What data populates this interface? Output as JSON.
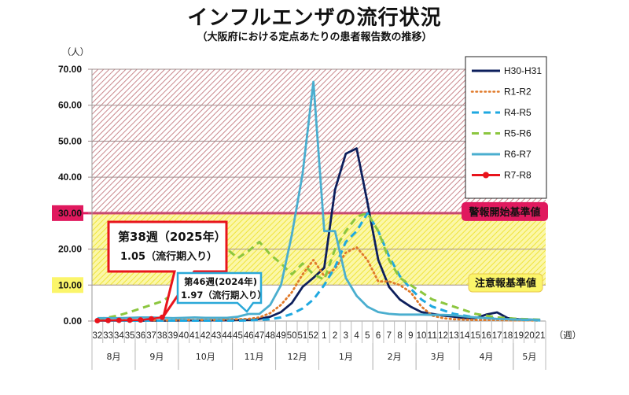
{
  "chart_data": {
    "type": "line",
    "title": "インフルエンザの流行状況",
    "subtitle": "（大阪府における定点あたりの患者報告数の推移）",
    "ylabel": "（人）",
    "xlabel": "（週）",
    "ylim": [
      0,
      70
    ],
    "yticks": [
      "0.00",
      "10.00",
      "20.00",
      "30.00",
      "40.00",
      "50.00",
      "60.00",
      "70.00"
    ],
    "ytick_values": [
      0,
      10,
      20,
      30,
      40,
      50,
      60,
      70
    ],
    "grid": true,
    "legend_position": "top-right",
    "categories": [
      "32",
      "33",
      "34",
      "35",
      "36",
      "37",
      "38",
      "39",
      "40",
      "41",
      "42",
      "43",
      "44",
      "45",
      "46",
      "47",
      "48",
      "49",
      "50",
      "51",
      "52",
      "1",
      "2",
      "3",
      "4",
      "5",
      "6",
      "7",
      "8",
      "9",
      "10",
      "11",
      "12",
      "13",
      "14",
      "15",
      "16",
      "17",
      "18",
      "19",
      "20",
      "21"
    ],
    "months": [
      {
        "label": "8月",
        "start": 0,
        "end": 4
      },
      {
        "label": "9月",
        "start": 4,
        "end": 8
      },
      {
        "label": "10月",
        "start": 8,
        "end": 13
      },
      {
        "label": "11月",
        "start": 13,
        "end": 17
      },
      {
        "label": "12月",
        "start": 17,
        "end": 21
      },
      {
        "label": "1月",
        "start": 21,
        "end": 26
      },
      {
        "label": "2月",
        "start": 26,
        "end": 30
      },
      {
        "label": "3月",
        "start": 30,
        "end": 34
      },
      {
        "label": "4月",
        "start": 34,
        "end": 39
      },
      {
        "label": "5月",
        "start": 39,
        "end": 42
      }
    ],
    "series": [
      {
        "name": "H30-H31",
        "color": "#0d1f5c",
        "style": "solid",
        "values": [
          0.1,
          0.1,
          0.1,
          0.1,
          0.1,
          0.1,
          0.1,
          0.1,
          0.2,
          0.2,
          0.2,
          0.2,
          0.2,
          0.3,
          0.3,
          0.6,
          1.2,
          2.5,
          5.0,
          9.5,
          12.0,
          14.8,
          36.5,
          46.5,
          48.0,
          33.0,
          17.0,
          9.5,
          6.0,
          4.0,
          2.5,
          2.0,
          1.5,
          1.2,
          0.8,
          0.8,
          1.8,
          2.4,
          0.8,
          0.5,
          0.4,
          0.3
        ]
      },
      {
        "name": "R1-R2",
        "color": "#e07a2a",
        "style": "dotted",
        "values": [
          0.2,
          0.2,
          0.2,
          0.2,
          0.2,
          0.2,
          0.2,
          0.2,
          0.3,
          0.3,
          0.3,
          0.3,
          0.4,
          0.5,
          0.6,
          1.0,
          2.2,
          4.5,
          8.0,
          13.0,
          17.0,
          12.5,
          14.5,
          19.0,
          20.5,
          17.0,
          11.0,
          11.0,
          10.0,
          8.0,
          4.0,
          1.5,
          0.8,
          0.5,
          0.4,
          0.3,
          0.3,
          0.3,
          0.2,
          0.2,
          0.2,
          0.1
        ]
      },
      {
        "name": "R4-R5",
        "color": "#1fa8e0",
        "style": "dashed",
        "values": [
          0.1,
          0.1,
          0.1,
          0.1,
          0.1,
          0.1,
          0.1,
          0.1,
          0.1,
          0.1,
          0.1,
          0.1,
          0.1,
          0.1,
          0.2,
          0.3,
          0.5,
          1.0,
          2.0,
          3.5,
          6.0,
          10.0,
          15.0,
          22.0,
          25.0,
          30.0,
          25.0,
          18.0,
          12.5,
          9.0,
          6.0,
          4.0,
          3.0,
          2.0,
          1.5,
          1.0,
          0.8,
          0.8,
          0.5,
          0.4,
          0.3,
          0.2
        ]
      },
      {
        "name": "R5-R6",
        "color": "#8cc63f",
        "style": "dashed",
        "values": [
          0.5,
          1.0,
          1.6,
          2.5,
          3.5,
          4.5,
          5.5,
          7.5,
          9.5,
          12.0,
          15.0,
          17.5,
          20.0,
          17.5,
          19.5,
          22.0,
          18.5,
          16.0,
          13.0,
          16.0,
          13.0,
          11.5,
          20.0,
          25.0,
          29.0,
          30.0,
          25.0,
          17.0,
          12.0,
          10.0,
          8.0,
          6.0,
          5.0,
          4.0,
          3.0,
          2.0,
          1.5,
          1.0,
          0.8,
          0.6,
          0.5,
          0.4
        ]
      },
      {
        "name": "R6-R7",
        "color": "#4aaecf",
        "style": "solid",
        "values": [
          0.8,
          0.8,
          0.8,
          0.9,
          1.0,
          1.0,
          0.9,
          0.8,
          0.9,
          1.0,
          0.9,
          0.9,
          0.9,
          1.2,
          1.97,
          2.0,
          4.5,
          10.0,
          24.0,
          41.0,
          66.5,
          25.0,
          25.0,
          12.0,
          7.0,
          4.0,
          2.5,
          2.0,
          1.8,
          1.8,
          1.8,
          1.7,
          1.7,
          1.6,
          1.3,
          1.0,
          0.8,
          0.6,
          0.5,
          0.4,
          0.4,
          0.3
        ]
      },
      {
        "name": "R7-R8",
        "color": "#e8141c",
        "style": "solid-marker",
        "values": [
          0.1,
          0.15,
          0.2,
          0.25,
          0.3,
          0.6,
          1.05
        ]
      }
    ],
    "bands": [
      {
        "label": "警報開始基準値",
        "from": 30,
        "to": 70,
        "color": "#c9878c",
        "threshold": 30,
        "threshold_label": "30.00"
      },
      {
        "label": "注意報基準値",
        "from": 10,
        "to": 30,
        "color": "#f3ea3a",
        "threshold": 10,
        "threshold_label": "10.00"
      }
    ],
    "annotations": [
      {
        "line1": "第38週（2025年）",
        "line2": "1.05（流行期入り）",
        "series": "R7-R8",
        "week": "38",
        "color": "#e8141c"
      },
      {
        "line1": "第46週(2024年)",
        "line2": "1.97（流行期入り）",
        "series": "R6-R7",
        "week": "46",
        "color": "#2aa8d8"
      }
    ]
  }
}
